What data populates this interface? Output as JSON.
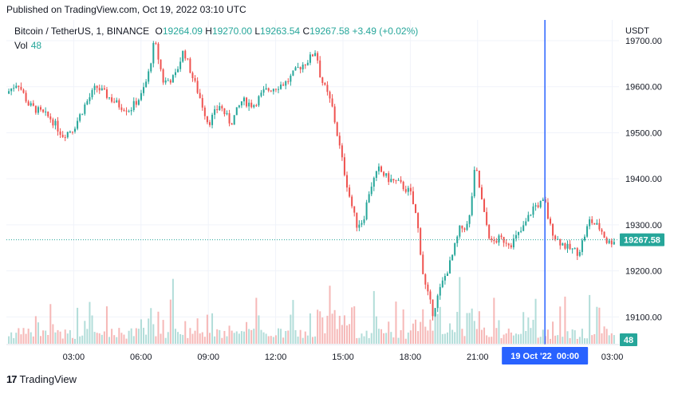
{
  "published": "Published on TradingView.com, Oct 19, 2022 03:10 UTC",
  "legend": {
    "symbol": "Bitcoin / TetherUS, 1, BINANCE",
    "o_label": "O",
    "o": "19264.09",
    "h_label": "H",
    "h": "19270.00",
    "l_label": "L",
    "l": "19263.54",
    "c_label": "C",
    "c": "19267.58",
    "change": "+3.49 (+0.02%)",
    "vol_label": "Vol",
    "vol": "48"
  },
  "footer": {
    "brand": "TradingView"
  },
  "colors": {
    "up": "#26a69a",
    "down": "#ef5350",
    "crosshair": "#2962ff",
    "volume_up": "#9fd4cf",
    "volume_down": "#f4a6a5"
  },
  "chart_data": {
    "type": "candlestick",
    "currency_label": "USDT",
    "y_ticks": [
      "19700.00",
      "19600.00",
      "19500.00",
      "19400.00",
      "19300.00",
      "19200.00",
      "19100.00"
    ],
    "ylim": [
      19040,
      19745
    ],
    "x_ticks": [
      "03:00",
      "06:00",
      "09:00",
      "12:00",
      "15:00",
      "18:00",
      "21:00",
      "03:00"
    ],
    "xlim_hours": [
      0,
      27.3
    ],
    "x_tick_hours": [
      3,
      6,
      9,
      12,
      15,
      18,
      21,
      27
    ],
    "price_path": [
      [
        0,
        19585
      ],
      [
        0.5,
        19610
      ],
      [
        1,
        19560
      ],
      [
        1.5,
        19545
      ],
      [
        2,
        19530
      ],
      [
        2.5,
        19495
      ],
      [
        3,
        19510
      ],
      [
        3.5,
        19560
      ],
      [
        4,
        19600
      ],
      [
        4.5,
        19580
      ],
      [
        5,
        19560
      ],
      [
        5.5,
        19550
      ],
      [
        6,
        19580
      ],
      [
        6.3,
        19620
      ],
      [
        6.6,
        19700
      ],
      [
        7,
        19610
      ],
      [
        7.5,
        19620
      ],
      [
        7.9,
        19680
      ],
      [
        8.3,
        19620
      ],
      [
        8.6,
        19580
      ],
      [
        9,
        19520
      ],
      [
        9.5,
        19560
      ],
      [
        10,
        19520
      ],
      [
        10.5,
        19570
      ],
      [
        11,
        19560
      ],
      [
        11.5,
        19590
      ],
      [
        12,
        19600
      ],
      [
        12.5,
        19610
      ],
      [
        13,
        19640
      ],
      [
        13.5,
        19660
      ],
      [
        13.8,
        19680
      ],
      [
        14,
        19620
      ],
      [
        14.5,
        19560
      ],
      [
        15,
        19430
      ],
      [
        15.3,
        19360
      ],
      [
        15.6,
        19300
      ],
      [
        15.9,
        19310
      ],
      [
        16.2,
        19380
      ],
      [
        16.6,
        19420
      ],
      [
        17,
        19400
      ],
      [
        17.5,
        19390
      ],
      [
        18,
        19370
      ],
      [
        18.3,
        19310
      ],
      [
        18.6,
        19180
      ],
      [
        19,
        19110
      ],
      [
        19.4,
        19170
      ],
      [
        19.8,
        19220
      ],
      [
        20.2,
        19290
      ],
      [
        20.6,
        19300
      ],
      [
        20.9,
        19430
      ],
      [
        21.3,
        19320
      ],
      [
        21.6,
        19260
      ],
      [
        22,
        19270
      ],
      [
        22.5,
        19260
      ],
      [
        23,
        19290
      ],
      [
        23.5,
        19340
      ],
      [
        24,
        19350
      ],
      [
        24.2,
        19300
      ],
      [
        24.5,
        19270
      ],
      [
        25,
        19250
      ],
      [
        25.5,
        19240
      ],
      [
        26,
        19310
      ],
      [
        26.5,
        19290
      ],
      [
        26.8,
        19260
      ],
      [
        27.1,
        19268
      ]
    ],
    "last_price": 19267.58,
    "last_price_label": "19267.58",
    "last_volume_label": "48",
    "crosshair_label": "19 Oct '22  00:00",
    "crosshair_hour": 24
  }
}
